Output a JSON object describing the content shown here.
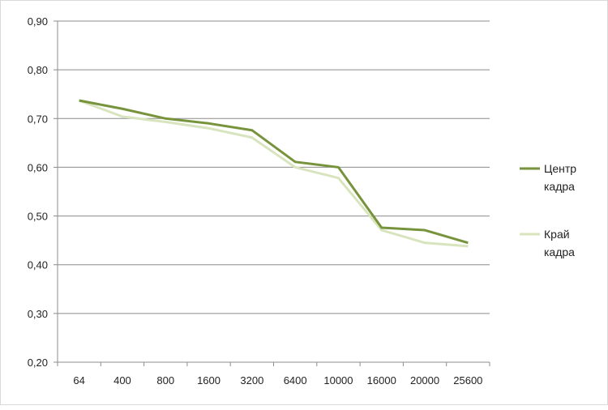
{
  "chart_data": {
    "type": "line",
    "categories": [
      "64",
      "400",
      "800",
      "1600",
      "3200",
      "6400",
      "10000",
      "16000",
      "20000",
      "25600"
    ],
    "series": [
      {
        "name": "Центр кадра",
        "name_lines": [
          "Центр",
          "кадра"
        ],
        "color": "#77933c",
        "values": [
          0.737,
          0.72,
          0.7,
          0.69,
          0.676,
          0.611,
          0.6,
          0.476,
          0.471,
          0.445
        ]
      },
      {
        "name": "Край кадра",
        "name_lines": [
          "Край",
          "кадра"
        ],
        "color": "#d7e4bd",
        "values": [
          0.737,
          0.704,
          0.693,
          0.68,
          0.661,
          0.6,
          0.578,
          0.471,
          0.445,
          0.438
        ]
      }
    ],
    "yticks": [
      "0,20",
      "0,30",
      "0,40",
      "0,50",
      "0,60",
      "0,70",
      "0,80",
      "0,90"
    ],
    "ylim": [
      0.2,
      0.9
    ],
    "grid": true,
    "legend": "right",
    "xlabel": "",
    "ylabel": "",
    "title": ""
  }
}
